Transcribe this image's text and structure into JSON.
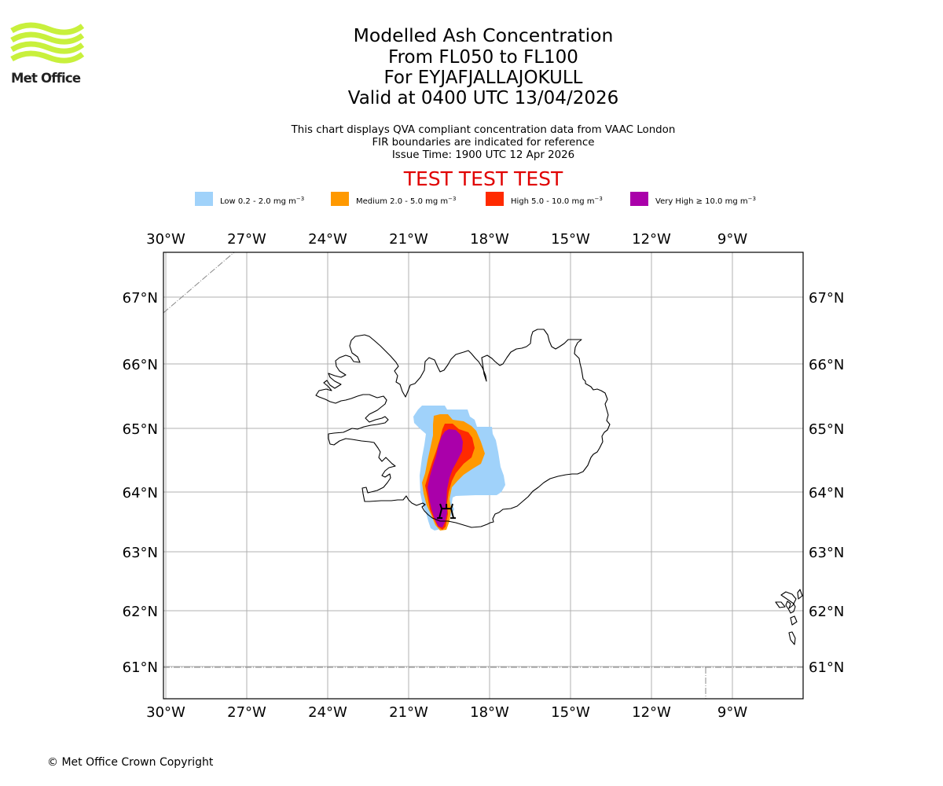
{
  "logo": {
    "text": "Met Office",
    "colour": "#c8f03c"
  },
  "title": {
    "lines": [
      "Modelled Ash Concentration",
      "From FL050 to FL100",
      "For EYJAFJALLAJOKULL",
      "Valid at 0400 UTC 13/04/2026"
    ]
  },
  "subtitle": {
    "lines": [
      "This chart displays QVA compliant concentration data from VAAC London",
      "FIR boundaries are indicated for reference",
      "Issue Time: 1900 UTC 12 Apr 2026"
    ]
  },
  "test_banner": {
    "text": "TEST TEST TEST",
    "colour": "#e00000"
  },
  "legend": [
    {
      "label": "Low 0.2 - 2.0 mg m",
      "exponent": "−3",
      "colour": "#a0d2fa"
    },
    {
      "label": "Medium 2.0 - 5.0 mg m",
      "exponent": "−3",
      "colour": "#ff9900"
    },
    {
      "label": "High 5.0 - 10.0 mg m",
      "exponent": "−3",
      "colour": "#ff2a00"
    },
    {
      "label": "Very High  ≥  10.0 mg m",
      "exponent": "−3",
      "colour": "#aa00aa"
    }
  ],
  "map": {
    "volcano": {
      "name": "EYJAFJALLAJOKULL",
      "lon": -19.6,
      "lat": 63.63,
      "icon": "volcano-icon"
    },
    "lon_ticks": [
      {
        "value": -30,
        "label": "30°W"
      },
      {
        "value": -27,
        "label": "27°W"
      },
      {
        "value": -24,
        "label": "24°W"
      },
      {
        "value": -21,
        "label": "21°W"
      },
      {
        "value": -18,
        "label": "18°W"
      },
      {
        "value": -15,
        "label": "15°W"
      },
      {
        "value": -12,
        "label": "12°W"
      },
      {
        "value": -9,
        "label": "9°W"
      }
    ],
    "lat_ticks": [
      {
        "value": 67,
        "label": "67°N"
      },
      {
        "value": 66,
        "label": "66°N"
      },
      {
        "value": 65,
        "label": "65°N"
      },
      {
        "value": 64,
        "label": "64°N"
      },
      {
        "value": 63,
        "label": "63°N"
      },
      {
        "value": 62,
        "label": "62°N"
      },
      {
        "value": 61,
        "label": "61°N"
      }
    ],
    "gridline_colour": "#b0b0b0",
    "fir_boundary_colour": "#888888"
  },
  "footer": {
    "copyright": "© Met Office Crown Copyright"
  }
}
